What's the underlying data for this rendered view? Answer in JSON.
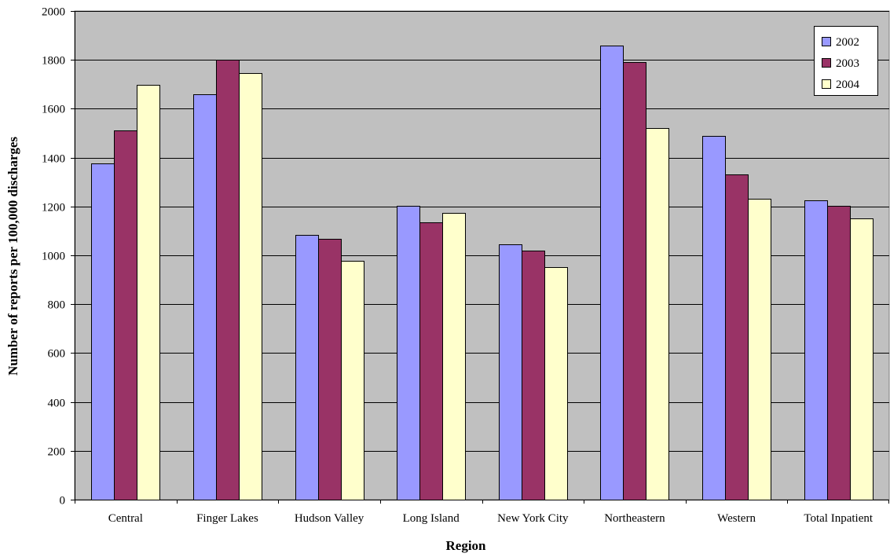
{
  "chart_data": {
    "type": "bar",
    "title": "",
    "xlabel": "Region",
    "ylabel": "Number of reports per 100,000 discharges",
    "ylim": [
      0,
      2000
    ],
    "yticks": [
      0,
      200,
      400,
      600,
      800,
      1000,
      1200,
      1400,
      1600,
      1800,
      2000
    ],
    "grid": true,
    "legend_position": "top-right",
    "plot_background": "#c0c0c0",
    "categories": [
      "Central",
      "Finger Lakes",
      "Hudson Valley",
      "Long Island",
      "New York City",
      "Northeastern",
      "Western",
      "Total Inpatient"
    ],
    "series": [
      {
        "name": "2002",
        "color": "#9999ff",
        "values": [
          1375,
          1658,
          1082,
          1203,
          1045,
          1860,
          1490,
          1225
        ]
      },
      {
        "name": "2003",
        "color": "#993366",
        "values": [
          1510,
          1802,
          1068,
          1135,
          1020,
          1792,
          1332,
          1203
        ]
      },
      {
        "name": "2004",
        "color": "#ffffcc",
        "values": [
          1698,
          1745,
          977,
          1173,
          953,
          1520,
          1232,
          1150
        ]
      }
    ]
  }
}
